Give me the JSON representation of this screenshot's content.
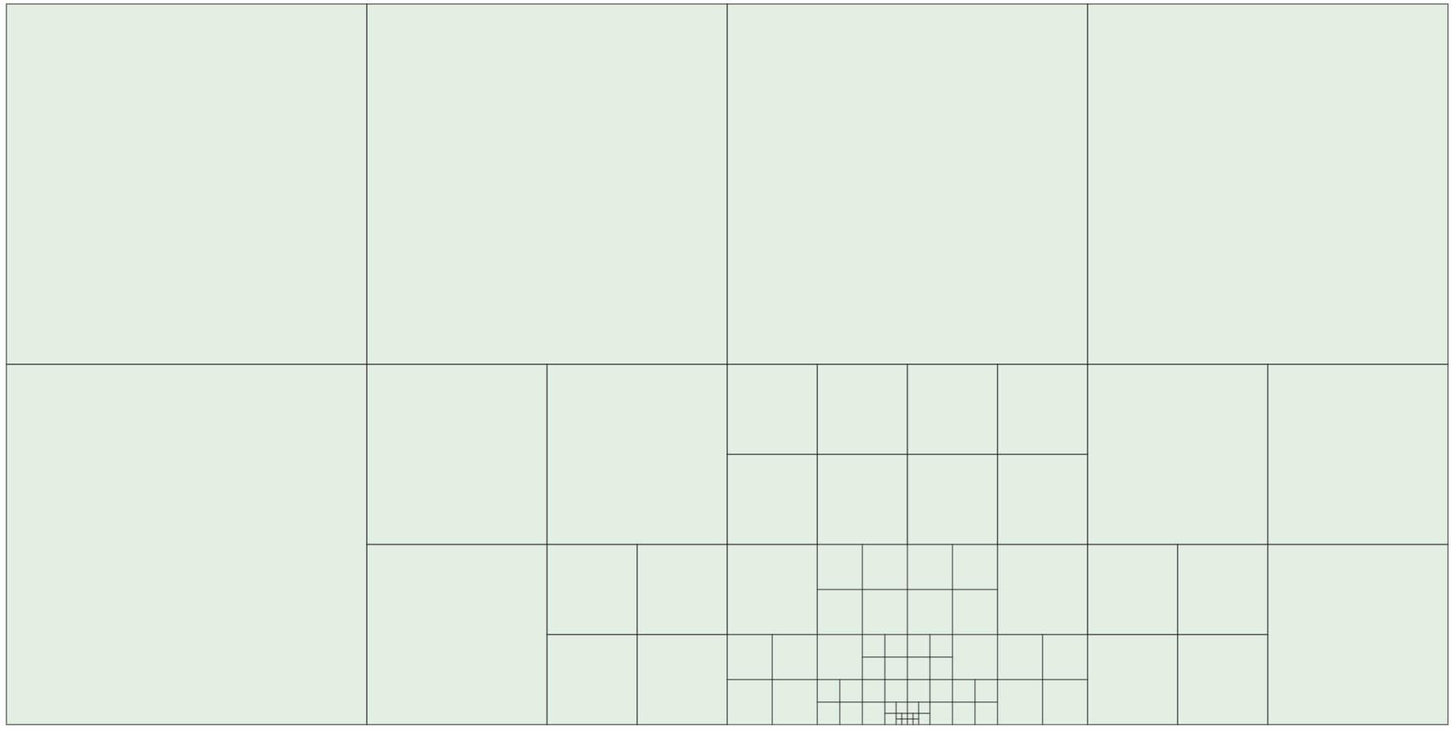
{
  "diagram": {
    "kind": "adaptive-quadtree-mesh",
    "colors": {
      "background": "#e4efe3",
      "line": "#1a1a1a",
      "border": "#bdbdbd"
    },
    "domain": {
      "x": [
        0,
        16
      ],
      "y": [
        0,
        8
      ]
    },
    "refinement_center": {
      "x": 10,
      "y": 0
    },
    "max_level": 7,
    "levels": [
      {
        "level": 0,
        "max_distance": 999
      },
      {
        "level": 1,
        "max_distance": 5
      },
      {
        "level": 2,
        "max_distance": 3.5
      },
      {
        "level": 3,
        "max_distance": 2.2
      },
      {
        "level": 4,
        "max_distance": 1.2
      },
      {
        "level": 5,
        "max_distance": 0.6
      },
      {
        "level": 6,
        "max_distance": 0.25
      },
      {
        "level": 7,
        "max_distance": 0.1
      }
    ]
  }
}
